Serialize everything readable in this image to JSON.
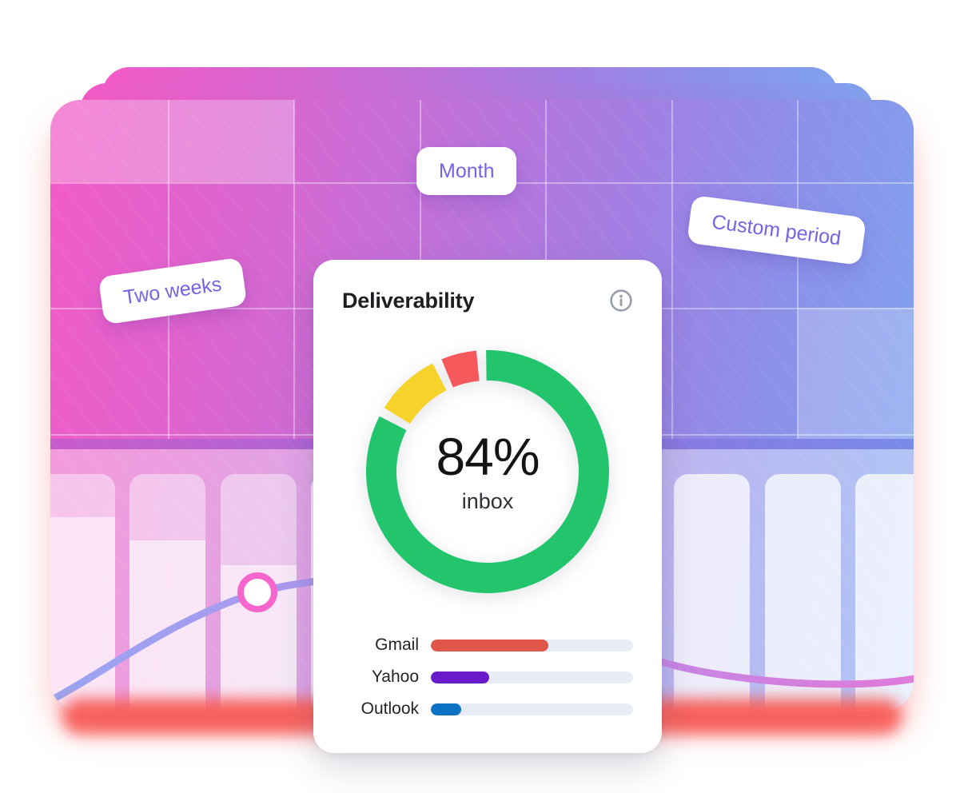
{
  "panel": {
    "title": "Deliverability",
    "donut": {
      "center_value": "84%",
      "center_label": "inbox"
    }
  },
  "filter_pills": [
    {
      "id": "two-weeks",
      "label": "Two weeks"
    },
    {
      "id": "month",
      "label": "Month"
    },
    {
      "id": "custom-period",
      "label": "Custom period"
    }
  ],
  "colors": {
    "green": "#22c56c",
    "yellow": "#f6d32b",
    "red": "#f6595c",
    "gmail": "#e0574a",
    "yahoo": "#6a1bc9",
    "outlook": "#0d72c4",
    "pill_text": "#7463e5",
    "track": "#e8ecf6"
  },
  "chart_data": [
    {
      "type": "pie",
      "subtype": "donut",
      "title": "Deliverability",
      "center_value": "84%",
      "center_label": "inbox",
      "values": [
        84,
        10,
        6
      ],
      "colors": [
        "#22c56c",
        "#f6d32b",
        "#f6595c"
      ],
      "start_angle_deg": -3,
      "gap_deg": 2.3
    },
    {
      "type": "bar",
      "orientation": "horizontal",
      "categories": [
        "Gmail",
        "Yahoo",
        "Outlook"
      ],
      "values": [
        58,
        29,
        15
      ],
      "value_unit": "percent of track width",
      "colors": [
        "#e0574a",
        "#6a1bc9",
        "#0d72c4"
      ],
      "xlim": [
        0,
        100
      ]
    }
  ]
}
